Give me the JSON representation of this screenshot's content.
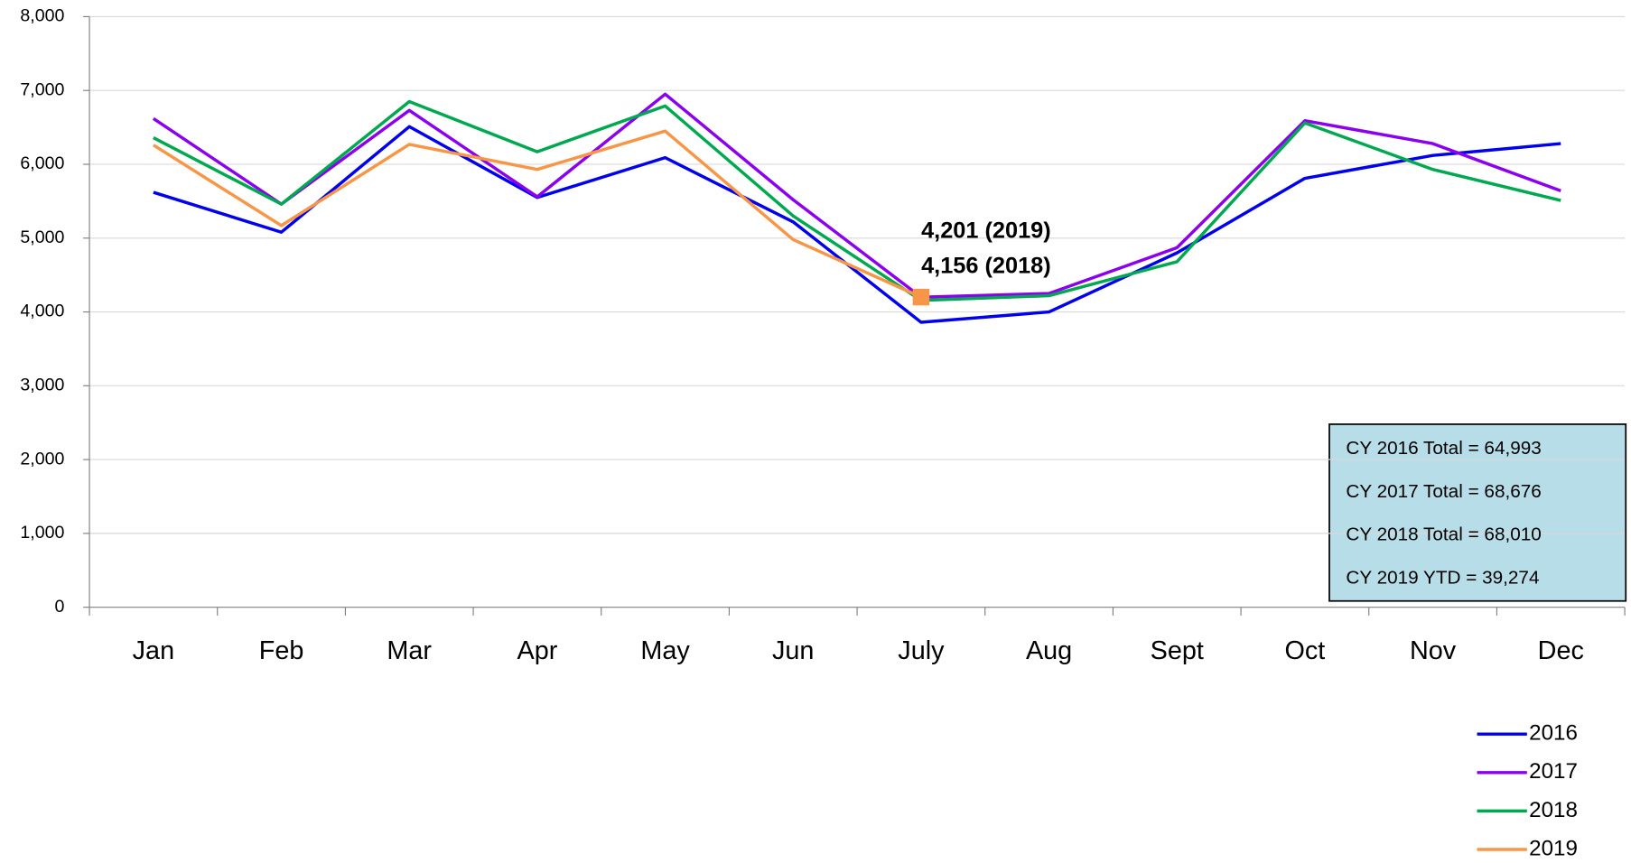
{
  "chart_data": {
    "type": "line",
    "categories": [
      "Jan",
      "Feb",
      "Mar",
      "Apr",
      "May",
      "Jun",
      "July",
      "Aug",
      "Sept",
      "Oct",
      "Nov",
      "Dec"
    ],
    "series": [
      {
        "name": "2016",
        "color": "#0000ee",
        "values": [
          5620,
          5080,
          6510,
          5550,
          6090,
          5220,
          3860,
          4000,
          4800,
          5810,
          6120,
          6280
        ]
      },
      {
        "name": "2017",
        "color": "#8b00ee",
        "values": [
          6620,
          5460,
          6730,
          5560,
          6950,
          5520,
          4200,
          4250,
          4870,
          6590,
          6280,
          5640
        ]
      },
      {
        "name": "2018",
        "color": "#00a850",
        "values": [
          6360,
          5460,
          6850,
          6170,
          6790,
          5300,
          4156,
          4220,
          4680,
          6560,
          5930,
          5510
        ]
      },
      {
        "name": "2019",
        "color": "#f79646",
        "values": [
          6260,
          5170,
          6270,
          5930,
          6450,
          4980,
          4201,
          null,
          null,
          null,
          null,
          null
        ]
      }
    ],
    "ylim": [
      0,
      8000
    ],
    "yticks": [
      0,
      {
        "value": 1000,
        "label": "1,000"
      },
      {
        "value": 2000,
        "label": "2,000"
      },
      {
        "value": 3000,
        "label": "3,000"
      },
      {
        "value": 4000,
        "label": "4,000"
      },
      {
        "value": 5000,
        "label": "5,000"
      },
      {
        "value": 6000,
        "label": "6,000"
      },
      {
        "value": 7000,
        "label": "7,000"
      },
      {
        "value": 8000,
        "label": "8,000"
      }
    ],
    "grid": true,
    "legend": "bottom-right",
    "annotations": [
      "4,201 (2019)",
      "4,156 (2018)"
    ],
    "text_box": [
      "CY 2016 Total = 64,993",
      "CY 2017 Total = 68,676",
      "CY 2018 Total = 68,010",
      "CY 2019 YTD = 39,274"
    ]
  }
}
